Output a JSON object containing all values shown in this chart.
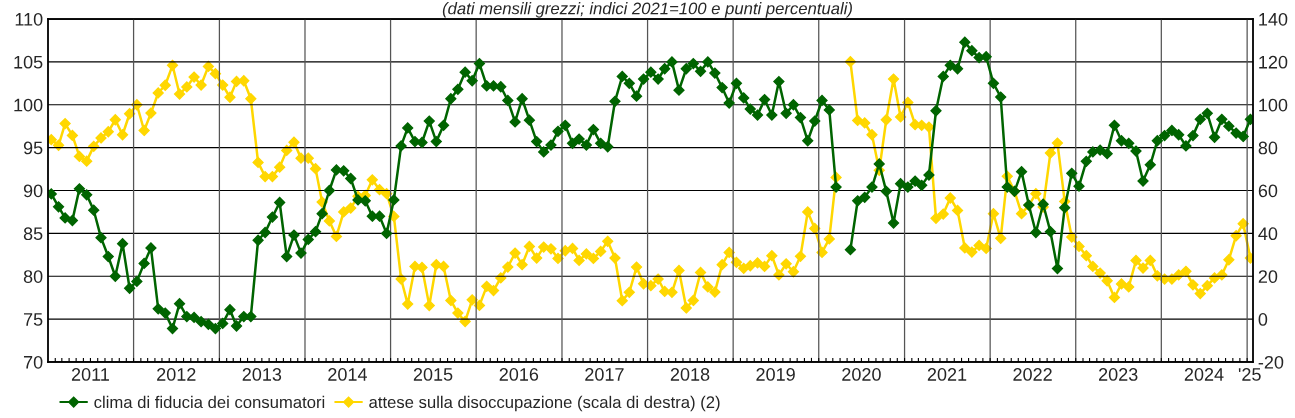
{
  "chart_data": {
    "type": "line",
    "subtitle": "(dati mensili grezzi; indici 2021=100 e punti percentuali)",
    "x": [
      "2011-01-15",
      "2011-02-15",
      "2011-03-15",
      "2011-04-15",
      "2011-05-15",
      "2011-06-15",
      "2011-07-15",
      "2011-08-15",
      "2011-09-15",
      "2011-10-15",
      "2011-11-15",
      "2011-12-15",
      "2012-01-15",
      "2012-02-15",
      "2012-03-15",
      "2012-04-15",
      "2012-05-15",
      "2012-06-15",
      "2012-07-15",
      "2012-08-15",
      "2012-09-15",
      "2012-10-15",
      "2012-11-15",
      "2012-12-15",
      "2013-01-15",
      "2013-02-15",
      "2013-03-15",
      "2013-04-15",
      "2013-05-15",
      "2013-06-15",
      "2013-07-15",
      "2013-08-15",
      "2013-09-15",
      "2013-10-15",
      "2013-11-15",
      "2013-12-15",
      "2014-01-15",
      "2014-02-15",
      "2014-03-15",
      "2014-04-15",
      "2014-05-15",
      "2014-06-15",
      "2014-07-15",
      "2014-08-15",
      "2014-09-15",
      "2014-10-15",
      "2014-11-15",
      "2014-12-15",
      "2015-01-15",
      "2015-02-15",
      "2015-03-15",
      "2015-04-15",
      "2015-05-15",
      "2015-06-15",
      "2015-07-15",
      "2015-08-15",
      "2015-09-15",
      "2015-10-15",
      "2015-11-15",
      "2015-12-15",
      "2016-01-15",
      "2016-02-15",
      "2016-03-15",
      "2016-04-15",
      "2016-05-15",
      "2016-06-15",
      "2016-07-15",
      "2016-08-15",
      "2016-09-15",
      "2016-10-15",
      "2016-11-15",
      "2016-12-15",
      "2017-01-15",
      "2017-02-15",
      "2017-03-15",
      "2017-04-15",
      "2017-05-15",
      "2017-06-15",
      "2017-07-15",
      "2017-08-15",
      "2017-09-15",
      "2017-10-15",
      "2017-11-15",
      "2017-12-15",
      "2018-01-15",
      "2018-02-15",
      "2018-03-15",
      "2018-04-15",
      "2018-05-15",
      "2018-06-15",
      "2018-07-15",
      "2018-08-15",
      "2018-09-15",
      "2018-10-15",
      "2018-11-15",
      "2018-12-15",
      "2019-01-15",
      "2019-02-15",
      "2019-03-15",
      "2019-04-15",
      "2019-05-15",
      "2019-06-15",
      "2019-07-15",
      "2019-08-15",
      "2019-09-15",
      "2019-10-15",
      "2019-11-15",
      "2019-12-15",
      "2020-01-15",
      "2020-02-15",
      "2020-03-15",
      "2020-04-15",
      "2020-05-15",
      "2020-06-15",
      "2020-07-15",
      "2020-08-15",
      "2020-09-15",
      "2020-10-15",
      "2020-11-15",
      "2020-12-15",
      "2021-01-15",
      "2021-02-15",
      "2021-03-15",
      "2021-04-15",
      "2021-05-15",
      "2021-06-15",
      "2021-07-15",
      "2021-08-15",
      "2021-09-15",
      "2021-10-15",
      "2021-11-15",
      "2021-12-15",
      "2022-01-15",
      "2022-02-15",
      "2022-03-15",
      "2022-04-15",
      "2022-05-15",
      "2022-06-15",
      "2022-07-15",
      "2022-08-15",
      "2022-09-15",
      "2022-10-15",
      "2022-11-15",
      "2022-12-15",
      "2023-01-15",
      "2023-02-15",
      "2023-03-15",
      "2023-04-15",
      "2023-05-15",
      "2023-06-15",
      "2023-07-15",
      "2023-08-15",
      "2023-09-15",
      "2023-10-15",
      "2023-11-15",
      "2023-12-15",
      "2024-01-15",
      "2024-02-15",
      "2024-03-15",
      "2024-04-15",
      "2024-05-15",
      "2024-06-15",
      "2024-07-15",
      "2024-08-15",
      "2024-09-15",
      "2024-10-15",
      "2024-11-15",
      "2024-12-15",
      "2025-01-15"
    ],
    "series": [
      {
        "name": "clima di fiducia dei consumatori",
        "color": "#006400",
        "values": [
          89.6,
          88.1,
          86.8,
          86.5,
          90.2,
          89.5,
          87.7,
          84.5,
          82.3,
          80.0,
          83.8,
          78.6,
          79.4,
          81.5,
          83.3,
          76.2,
          75.7,
          73.9,
          76.8,
          75.3,
          75.2,
          74.7,
          74.4,
          73.9,
          74.5,
          76.1,
          74.2,
          75.3,
          75.3,
          84.2,
          85.1,
          86.9,
          88.6,
          82.3,
          84.8,
          82.7,
          84.3,
          85.2,
          87.3,
          90.0,
          92.4,
          92.3,
          91.4,
          88.9,
          88.8,
          87.0,
          87.0,
          85.0,
          88.9,
          95.2,
          97.3,
          95.7,
          95.6,
          98.1,
          95.7,
          97.6,
          100.7,
          101.8,
          103.8,
          102.8,
          104.8,
          102.2,
          102.2,
          102.1,
          100.5,
          98.0,
          100.7,
          98.2,
          95.7,
          94.5,
          95.3,
          96.9,
          97.6,
          95.5,
          96.0,
          95.3,
          97.1,
          95.5,
          95.1,
          100.4,
          103.3,
          102.5,
          101.0,
          103.0,
          103.8,
          103.0,
          104.2,
          105.0,
          101.7,
          104.2,
          104.8,
          103.9,
          105.0,
          103.7,
          102.0,
          100.2,
          102.5,
          100.8,
          99.5,
          98.8,
          100.6,
          98.8,
          102.7,
          99.0,
          100.0,
          98.5,
          95.8,
          98.1,
          100.5,
          99.4,
          90.4,
          null,
          83.1,
          88.8,
          89.2,
          90.4,
          93.1,
          89.9,
          86.2,
          90.8,
          90.4,
          91.1,
          90.6,
          91.8,
          99.3,
          103.3,
          104.6,
          104.2,
          107.3,
          106.3,
          105.5,
          105.6,
          102.5,
          100.9,
          90.4,
          89.9,
          92.2,
          88.3,
          85.1,
          88.4,
          85.2,
          80.9,
          88.0,
          92.0,
          90.5,
          93.4,
          94.5,
          94.7,
          94.3,
          97.6,
          95.8,
          95.5,
          94.6,
          91.1,
          93.0,
          95.8,
          96.4,
          97.0,
          96.5,
          95.2,
          96.4,
          98.3,
          99.0,
          96.2,
          98.3,
          97.5,
          96.7,
          96.3,
          98.3
        ]
      },
      {
        "name": "attese sulla disoccupazione (scala di destra) (2)",
        "color": "#ffd700",
        "axis": "y2",
        "values": [
          83.7,
          81.1,
          91.2,
          85.7,
          75.9,
          73.7,
          80.6,
          84.5,
          87.4,
          93.0,
          86.0,
          95.8,
          100.0,
          88.0,
          96.1,
          105.5,
          109.1,
          118.4,
          105.0,
          108.3,
          112.9,
          109.2,
          117.9,
          114.5,
          109.2,
          103.5,
          110.9,
          111.2,
          102.8,
          73.1,
          66.5,
          66.5,
          70.9,
          78.7,
          82.5,
          75.1,
          75.1,
          70.2,
          54.6,
          45.8,
          38.6,
          50.0,
          51.8,
          57.3,
          57.7,
          65.0,
          60.4,
          58.5,
          47.9,
          18.7,
          7.0,
          24.6,
          24.1,
          6.3,
          25.4,
          24.6,
          8.7,
          2.8,
          -1.1,
          9.0,
          6.4,
          15.3,
          13.3,
          19.2,
          24.3,
          30.8,
          25.4,
          33.9,
          28.5,
          33.6,
          32.8,
          28.3,
          31.9,
          33.0,
          27.4,
          30.4,
          28.3,
          31.6,
          36.3,
          28.5,
          8.6,
          12.5,
          24.3,
          16.5,
          15.6,
          18.7,
          12.9,
          12.5,
          22.7,
          5.2,
          8.7,
          21.8,
          15.0,
          12.6,
          25.4,
          31.1,
          26.5,
          23.7,
          24.9,
          26.2,
          24.6,
          29.6,
          20.6,
          25.8,
          22.1,
          29.3,
          50.0,
          42.3,
          31.1,
          37.4,
          66.1,
          null,
          120.1,
          92.7,
          91.5,
          86.0,
          69.4,
          93.0,
          112.0,
          94.3,
          101.1,
          90.7,
          90.4,
          89.6,
          47.0,
          49.0,
          56.5,
          50.7,
          33.2,
          31.3,
          34.4,
          33.0,
          49.2,
          37.7,
          66.6,
          59.6,
          49.2,
          53.1,
          58.5,
          52.3,
          77.5,
          82.1,
          54.9,
          38.3,
          33.9,
          29.6,
          24.6,
          21.5,
          17.9,
          10.1,
          16.4,
          15.0,
          27.4,
          23.8,
          27.4,
          20.2,
          18.7,
          18.7,
          20.6,
          22.3,
          16.0,
          11.9,
          15.6,
          19.2,
          20.6,
          27.7,
          38.9,
          44.5,
          28.5
        ]
      }
    ],
    "xlim": [
      "2011-01-01",
      "2025-01-26"
    ],
    "xticks": [
      {
        "value": "2011-07-01",
        "label": "2011"
      },
      {
        "value": "2012-07-01",
        "label": "2012"
      },
      {
        "value": "2013-07-01",
        "label": "2013"
      },
      {
        "value": "2014-07-01",
        "label": "2014"
      },
      {
        "value": "2015-07-01",
        "label": "2015"
      },
      {
        "value": "2016-07-01",
        "label": "2016"
      },
      {
        "value": "2017-07-01",
        "label": "2017"
      },
      {
        "value": "2018-07-01",
        "label": "2018"
      },
      {
        "value": "2019-07-01",
        "label": "2019"
      },
      {
        "value": "2020-07-01",
        "label": "2020"
      },
      {
        "value": "2021-07-01",
        "label": "2021"
      },
      {
        "value": "2022-07-01",
        "label": "2022"
      },
      {
        "value": "2023-07-01",
        "label": "2023"
      },
      {
        "value": "2024-07-01",
        "label": "2024"
      },
      {
        "value": "2025-01-12",
        "label": "'25"
      },
      {
        "value": "2012-01-01",
        "label": null
      },
      {
        "value": "2013-01-01",
        "label": null
      },
      {
        "value": "2014-01-01",
        "label": null
      },
      {
        "value": "2015-01-01",
        "label": null
      },
      {
        "value": "2016-01-01",
        "label": null
      },
      {
        "value": "2017-01-01",
        "label": null
      },
      {
        "value": "2018-01-01",
        "label": null
      },
      {
        "value": "2019-01-01",
        "label": null
      },
      {
        "value": "2020-01-01",
        "label": null
      },
      {
        "value": "2021-01-01",
        "label": null
      },
      {
        "value": "2022-01-01",
        "label": null
      },
      {
        "value": "2023-01-01",
        "label": null
      },
      {
        "value": "2024-01-01",
        "label": null
      },
      {
        "value": "2025-01-01",
        "label": null
      }
    ],
    "ylim": [
      70,
      110
    ],
    "yticks": [
      70,
      75,
      80,
      85,
      90,
      95,
      100,
      105,
      110
    ],
    "y2lim": [
      -20,
      140
    ],
    "y2ticks": [
      -20,
      0,
      20,
      40,
      60,
      80,
      100,
      120,
      140
    ],
    "grid": true,
    "legend": "bottom",
    "marker": "diamond",
    "line_style": "solid"
  }
}
